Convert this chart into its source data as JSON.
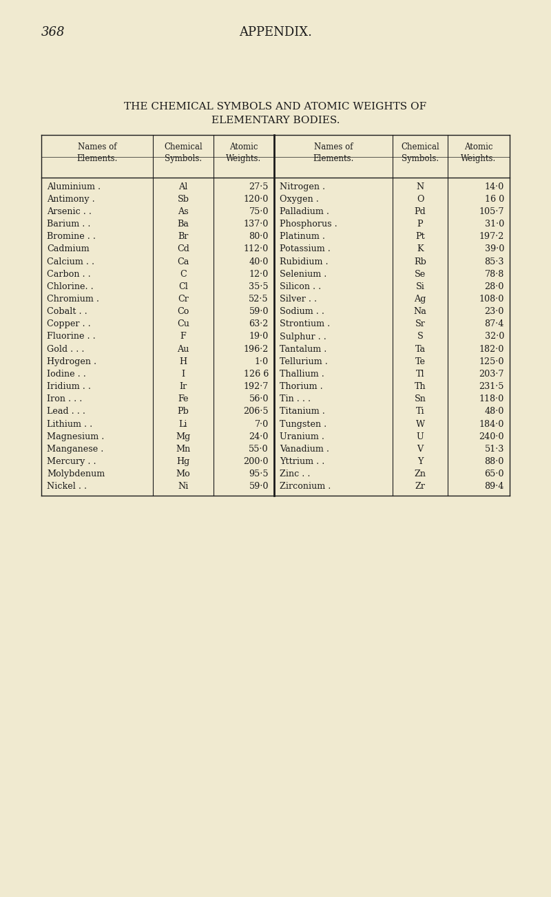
{
  "page_number": "368",
  "appendix_title": "APPENDIX.",
  "main_title_line1": "THE CHEMICAL SYMBOLS AND ATOMIC WEIGHTS OF",
  "main_title_line2": "ELEMENTARY BODIES.",
  "col_headers_left": [
    "Names of\nElements.",
    "Chemical\nSymbols.",
    "Atomic\nWeights."
  ],
  "col_headers_right": [
    "Names of\nElements.",
    "Chemical\nSymbols.",
    "Atomic\nWeights."
  ],
  "left_data": [
    [
      "Aluminium .",
      "Al",
      "27·5"
    ],
    [
      "Antimony .",
      "Sb",
      "120·0"
    ],
    [
      "Arsenic . .",
      "As",
      "75·0"
    ],
    [
      "Barium . .",
      "Ba",
      "137·0"
    ],
    [
      "Bromine . .",
      "Br",
      "80·0"
    ],
    [
      "Cadmium",
      "Cd",
      "112·0"
    ],
    [
      "Calcium . .",
      "Ca",
      "40·0"
    ],
    [
      "Carbon . .",
      "C",
      "12·0"
    ],
    [
      "Chlorine. .",
      "Cl",
      "35·5"
    ],
    [
      "Chromium .",
      "Cr",
      "52·5"
    ],
    [
      "Cobalt . .",
      "Co",
      "59·0"
    ],
    [
      "Copper . .",
      "Cu",
      "63·2"
    ],
    [
      "Fluorine . .",
      "F",
      "19·0"
    ],
    [
      "Gold . . .",
      "Au",
      "196·2"
    ],
    [
      "Hydrogen .",
      "H",
      "1·0"
    ],
    [
      "Iodine . .",
      "I",
      "126 6"
    ],
    [
      "Iridium . .",
      "Ir",
      "192·7"
    ],
    [
      "Iron . . .",
      "Fe",
      "56·0"
    ],
    [
      "Lead . . .",
      "Pb",
      "206·5"
    ],
    [
      "Lithium . .",
      "Li",
      "7·0"
    ],
    [
      "Magnesium .",
      "Mg",
      "24·0"
    ],
    [
      "Manganese .",
      "Mn",
      "55·0"
    ],
    [
      "Mercury . .",
      "Hg",
      "200·0"
    ],
    [
      "Molybdenum",
      "Mo",
      "95·5"
    ],
    [
      "Nickel . .",
      "Ni",
      "59·0"
    ]
  ],
  "right_data": [
    [
      "Nitrogen .",
      "N",
      "14·0"
    ],
    [
      "Oxygen .",
      "O",
      "16 0"
    ],
    [
      "Palladium .",
      "Pd",
      "105·7"
    ],
    [
      "Phosphorus .",
      "P",
      "31·0"
    ],
    [
      "Platinum .",
      "Pt",
      "197·2"
    ],
    [
      "Potassium .",
      "K",
      "39·0"
    ],
    [
      "Rubidium .",
      "Rb",
      "85·3"
    ],
    [
      "Selenium .",
      "Se",
      "78·8"
    ],
    [
      "Silicon . .",
      "Si",
      "28·0"
    ],
    [
      "Silver . .",
      "Ag",
      "108·0"
    ],
    [
      "Sodium . .",
      "Na",
      "23·0"
    ],
    [
      "Strontium .",
      "Sr",
      "87·4"
    ],
    [
      "Sulphur . .",
      "S",
      "32·0"
    ],
    [
      "Tantalum .",
      "Ta",
      "182·0"
    ],
    [
      "Tellurium .",
      "Te",
      "125·0"
    ],
    [
      "Thallium .",
      "Tl",
      "203·7"
    ],
    [
      "Thorium .",
      "Th",
      "231·5"
    ],
    [
      "Tin . . .",
      "Sn",
      "118·0"
    ],
    [
      "Titanium .",
      "Ti",
      "48·0"
    ],
    [
      "Tungsten .",
      "W",
      "184·0"
    ],
    [
      "Uranium .",
      "U",
      "240·0"
    ],
    [
      "Vanadium .",
      "V",
      "51·3"
    ],
    [
      "Yttrium . .",
      "Y",
      "88·0"
    ],
    [
      "Zinc . .",
      "Zn",
      "65·0"
    ],
    [
      "Zirconium .",
      "Zr",
      "89·4"
    ]
  ],
  "bg_color": "#f0ead0",
  "text_color": "#1a1a1a",
  "line_color": "#1a1a1a",
  "fig_width": 8.0,
  "fig_height": 13.03,
  "dpi": 100
}
